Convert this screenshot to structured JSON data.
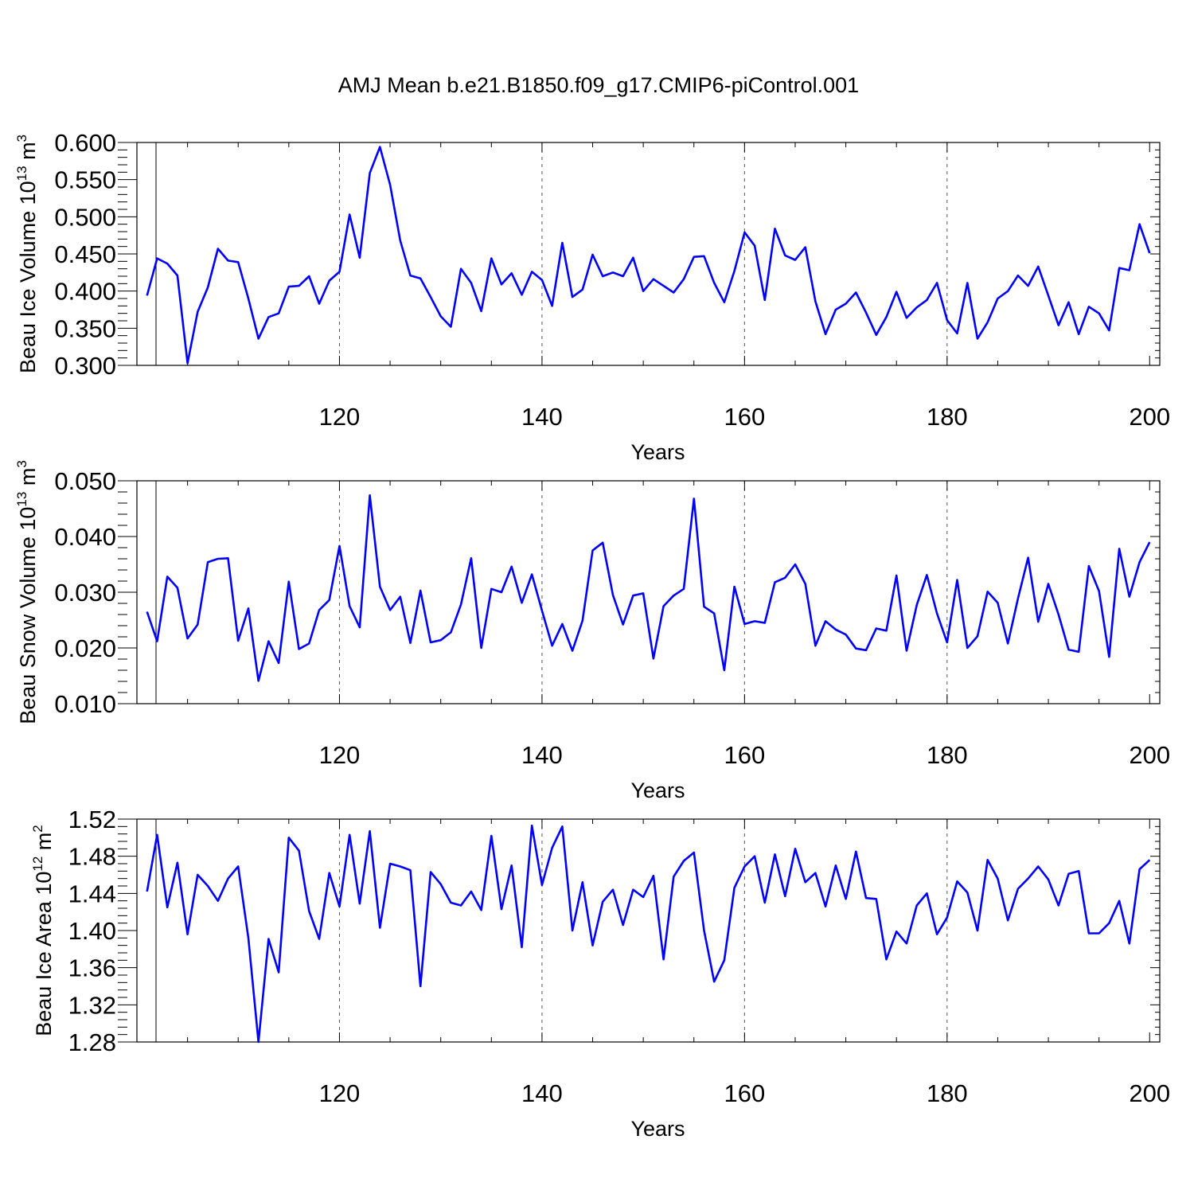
{
  "title": "AMJ Mean b.e21.B1850.f09_g17.CMIP6-piControl.001",
  "chart_data": [
    {
      "type": "line",
      "title": "",
      "ylabel": {
        "pre": "Beau Ice Volume 10",
        "exp": "13",
        "mid": " m",
        "unitexp": "3"
      },
      "xlabel": "Years",
      "xlim": [
        101,
        200
      ],
      "ylim": [
        0.3,
        0.6
      ],
      "yticks": [
        "0.300",
        "0.350",
        "0.400",
        "0.450",
        "0.500",
        "0.550",
        "0.600"
      ],
      "yminor_step": 0.01,
      "xticks": [
        "120",
        "140",
        "160",
        "180",
        "200"
      ],
      "grid": "vertical-dashed-major",
      "color": "#0000ff",
      "series": [
        {
          "values": [
            0.394,
            0.444,
            0.437,
            0.421,
            0.303,
            0.372,
            0.405,
            0.457,
            0.441,
            0.439,
            0.39,
            0.336,
            0.365,
            0.37,
            0.406,
            0.407,
            0.42,
            0.383,
            0.414,
            0.426,
            0.503,
            0.445,
            0.559,
            0.594,
            0.543,
            0.468,
            0.421,
            0.417,
            0.392,
            0.366,
            0.352,
            0.43,
            0.411,
            0.373,
            0.444,
            0.409,
            0.424,
            0.395,
            0.426,
            0.415,
            0.38,
            0.465,
            0.392,
            0.402,
            0.449,
            0.42,
            0.425,
            0.42,
            0.445,
            0.4,
            0.416,
            0.407,
            0.398,
            0.416,
            0.446,
            0.447,
            0.411,
            0.385,
            0.427,
            0.479,
            0.461,
            0.388,
            0.484,
            0.448,
            0.442,
            0.459,
            0.386,
            0.342,
            0.375,
            0.383,
            0.398,
            0.371,
            0.341,
            0.365,
            0.399,
            0.364,
            0.378,
            0.388,
            0.411,
            0.361,
            0.343,
            0.411,
            0.336,
            0.358,
            0.39,
            0.4,
            0.421,
            0.407,
            0.433,
            0.394,
            0.354,
            0.385,
            0.342,
            0.379,
            0.37,
            0.347,
            0.431,
            0.428,
            0.49,
            0.451
          ]
        }
      ]
    },
    {
      "type": "line",
      "title": "",
      "ylabel": {
        "pre": "Beau Snow Volume 10",
        "exp": "13",
        "mid": " m",
        "unitexp": "3"
      },
      "xlabel": "Years",
      "xlim": [
        101,
        200
      ],
      "ylim": [
        0.01,
        0.05
      ],
      "yticks": [
        "0.010",
        "0.020",
        "0.030",
        "0.040",
        "0.050"
      ],
      "yminor_step": 0.002,
      "xticks": [
        "120",
        "140",
        "160",
        "180",
        "200"
      ],
      "grid": "vertical-dashed-major",
      "color": "#0000ff",
      "series": [
        {
          "values": [
            0.0265,
            0.0212,
            0.0328,
            0.0308,
            0.0217,
            0.0242,
            0.0354,
            0.036,
            0.0361,
            0.0213,
            0.0271,
            0.0141,
            0.0212,
            0.0173,
            0.0319,
            0.0198,
            0.0208,
            0.0268,
            0.0286,
            0.0383,
            0.0275,
            0.0237,
            0.0474,
            0.031,
            0.0268,
            0.0292,
            0.0209,
            0.0303,
            0.021,
            0.0214,
            0.0228,
            0.0278,
            0.0361,
            0.02,
            0.0306,
            0.03,
            0.0346,
            0.0281,
            0.0332,
            0.0267,
            0.0204,
            0.0243,
            0.0195,
            0.0249,
            0.0375,
            0.0389,
            0.0295,
            0.0242,
            0.0294,
            0.0298,
            0.0181,
            0.0275,
            0.0294,
            0.0306,
            0.0468,
            0.0274,
            0.0262,
            0.016,
            0.031,
            0.0243,
            0.0248,
            0.0245,
            0.0318,
            0.0326,
            0.035,
            0.0315,
            0.0204,
            0.0248,
            0.0233,
            0.0224,
            0.0199,
            0.0196,
            0.0235,
            0.0231,
            0.033,
            0.0195,
            0.0277,
            0.0331,
            0.0262,
            0.021,
            0.0322,
            0.02,
            0.0221,
            0.0301,
            0.0281,
            0.0208,
            0.0289,
            0.0362,
            0.0247,
            0.0315,
            0.026,
            0.0197,
            0.0193,
            0.0347,
            0.0302,
            0.0184,
            0.0378,
            0.0292,
            0.0354,
            0.039
          ]
        }
      ]
    },
    {
      "type": "line",
      "title": "",
      "ylabel": {
        "pre": "Beau Ice Area 10",
        "exp": "12",
        "mid": " m",
        "unitexp": "2"
      },
      "xlabel": "Years",
      "xlim": [
        101,
        200
      ],
      "ylim": [
        1.28,
        1.52
      ],
      "yticks": [
        "1.28",
        "1.32",
        "1.36",
        "1.40",
        "1.44",
        "1.48",
        "1.52"
      ],
      "yminor_step": 0.008,
      "xticks": [
        "120",
        "140",
        "160",
        "180",
        "200"
      ],
      "grid": "vertical-dashed-major",
      "color": "#0000ff",
      "series": [
        {
          "values": [
            1.442,
            1.503,
            1.425,
            1.473,
            1.396,
            1.46,
            1.448,
            1.432,
            1.456,
            1.469,
            1.392,
            1.28,
            1.391,
            1.355,
            1.5,
            1.486,
            1.421,
            1.391,
            1.462,
            1.426,
            1.503,
            1.429,
            1.507,
            1.403,
            1.472,
            1.469,
            1.465,
            1.34,
            1.463,
            1.45,
            1.43,
            1.427,
            1.442,
            1.422,
            1.502,
            1.423,
            1.47,
            1.382,
            1.513,
            1.449,
            1.489,
            1.512,
            1.4,
            1.452,
            1.384,
            1.431,
            1.444,
            1.406,
            1.444,
            1.436,
            1.459,
            1.369,
            1.458,
            1.475,
            1.484,
            1.4,
            1.345,
            1.368,
            1.446,
            1.469,
            1.48,
            1.43,
            1.482,
            1.437,
            1.488,
            1.452,
            1.462,
            1.426,
            1.47,
            1.434,
            1.485,
            1.435,
            1.434,
            1.369,
            1.399,
            1.386,
            1.427,
            1.44,
            1.396,
            1.414,
            1.453,
            1.441,
            1.4,
            1.476,
            1.456,
            1.411,
            1.445,
            1.456,
            1.469,
            1.455,
            1.427,
            1.461,
            1.464,
            1.397,
            1.397,
            1.408,
            1.432,
            1.386,
            1.466,
            1.476
          ]
        }
      ]
    }
  ]
}
